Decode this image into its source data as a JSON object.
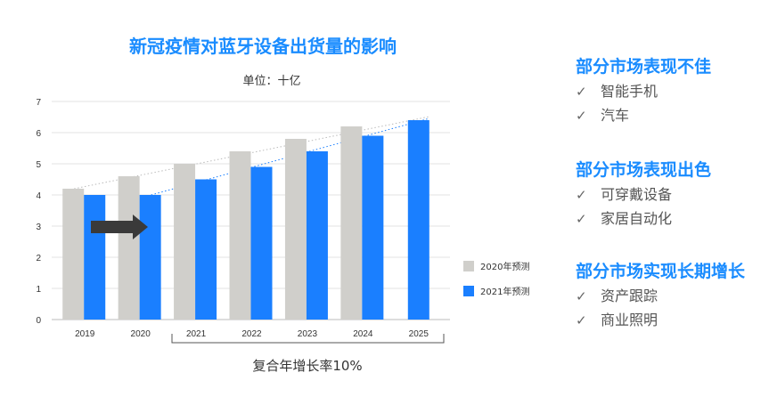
{
  "chart_data": {
    "type": "bar",
    "title": "新冠疫情对蓝牙设备出货量的影响",
    "unit": "单位：十亿",
    "categories": [
      "2019",
      "2020",
      "2021",
      "2022",
      "2023",
      "2024",
      "2025"
    ],
    "ylim": [
      0,
      7
    ],
    "yticks": [
      "0",
      "1",
      "2",
      "3",
      "4",
      "5",
      "6",
      "7"
    ],
    "grid": true,
    "legend_position": "right",
    "series": [
      {
        "name": "2020年预测",
        "color": "#d0cfcb",
        "values": [
          4.2,
          4.6,
          5.0,
          5.4,
          5.8,
          6.2,
          null
        ]
      },
      {
        "name": "2021年预测",
        "color": "#1a7fff",
        "values": [
          4.0,
          4.0,
          4.5,
          4.9,
          5.4,
          5.9,
          6.4
        ]
      }
    ],
    "cagr_label": "复合年增长率10%"
  },
  "panel": {
    "sections": [
      {
        "title": "部分市场表现不佳",
        "items": [
          "智能手机",
          "汽车"
        ]
      },
      {
        "title": "部分市场表现出色",
        "items": [
          "可穿戴设备",
          "家居自动化"
        ]
      },
      {
        "title": "部分市场实现长期增长",
        "items": [
          "资产跟踪",
          "商业照明"
        ]
      }
    ],
    "check_symbol": "✓"
  }
}
